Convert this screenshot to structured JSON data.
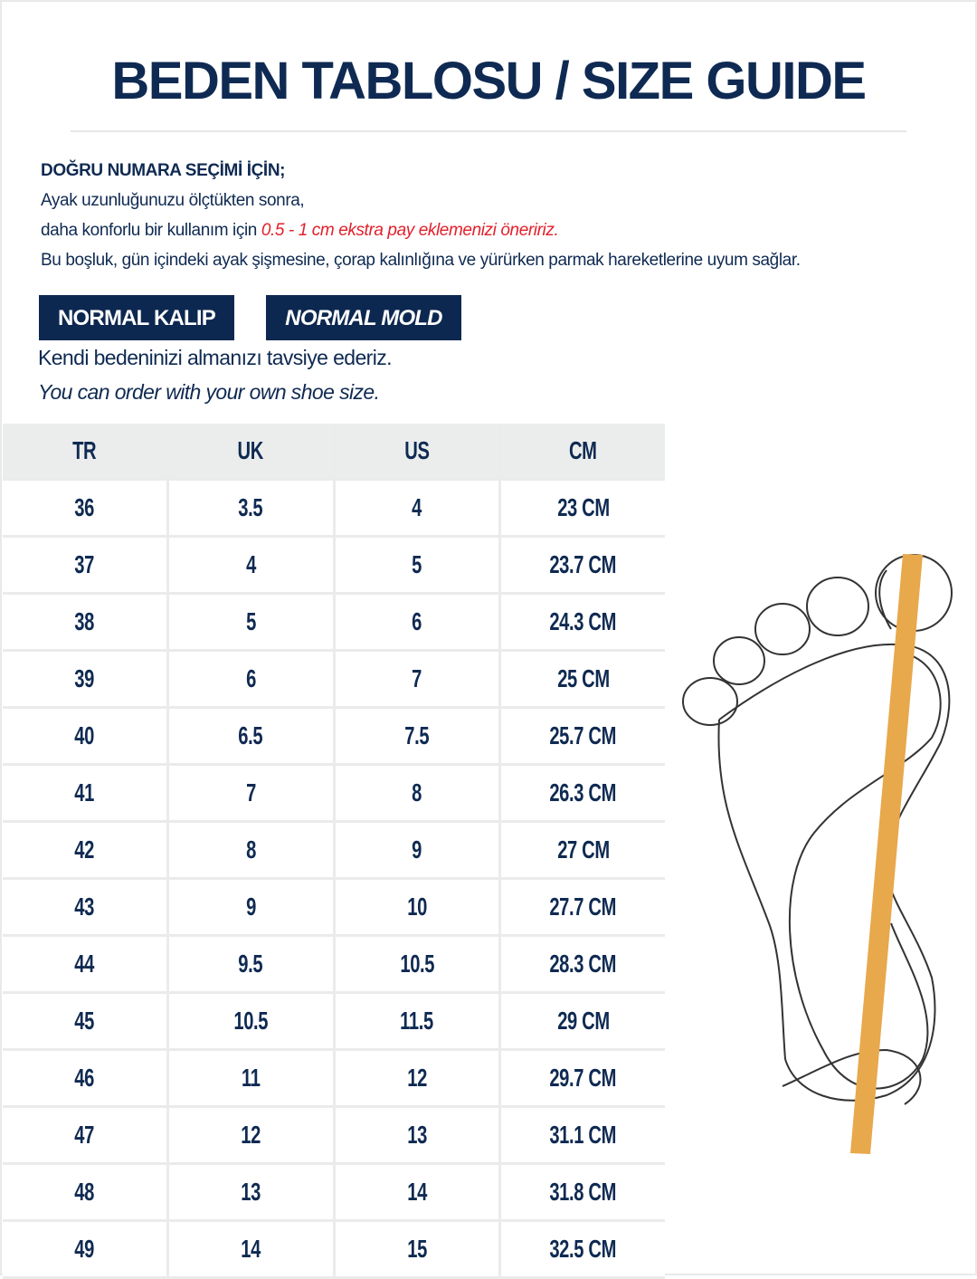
{
  "title": "BEDEN TABLOSU / SIZE GUIDE",
  "intro": {
    "heading": "DOĞRU NUMARA SEÇİMİ İÇİN;",
    "line1": "Ayak uzunluğunuzu ölçtükten sonra,",
    "line2_prefix": "daha konforlu bir kullanım için ",
    "line2_highlight": "0.5 - 1 cm ekstra pay eklemenizi öneririz.",
    "line3": "Bu boşluk, gün içindeki ayak şişmesine, çorap kalınlığına ve yürürken parmak hareketlerine uyum sağlar."
  },
  "badges": [
    "NORMAL KALIP",
    "NORMAL MOLD"
  ],
  "advice_tr": "Kendi bedeninizi almanızı tavsiye ederiz.",
  "advice_en": "You can order with your own shoe size.",
  "colors": {
    "navy": "#0f2a52",
    "highlight": "#e3202a",
    "ruler": "#e8a84c",
    "header_bg": "#ebeded"
  },
  "table": {
    "headers": [
      "TR",
      "UK",
      "US",
      "CM"
    ],
    "rows": [
      [
        "36",
        "3.5",
        "4",
        "23 CM"
      ],
      [
        "37",
        "4",
        "5",
        "23.7 CM"
      ],
      [
        "38",
        "5",
        "6",
        "24.3 CM"
      ],
      [
        "39",
        "6",
        "7",
        "25 CM"
      ],
      [
        "40",
        "6.5",
        "7.5",
        "25.7 CM"
      ],
      [
        "41",
        "7",
        "8",
        "26.3 CM"
      ],
      [
        "42",
        "8",
        "9",
        "27 CM"
      ],
      [
        "43",
        "9",
        "10",
        "27.7 CM"
      ],
      [
        "44",
        "9.5",
        "10.5",
        "28.3 CM"
      ],
      [
        "45",
        "10.5",
        "11.5",
        "29 CM"
      ],
      [
        "46",
        "11",
        "12",
        "29.7 CM"
      ],
      [
        "47",
        "12",
        "13",
        "31.1 CM"
      ],
      [
        "48",
        "13",
        "14",
        "31.8 CM"
      ],
      [
        "49",
        "14",
        "15",
        "32.5 CM"
      ]
    ]
  },
  "illustration": "foot-measurement-icon"
}
